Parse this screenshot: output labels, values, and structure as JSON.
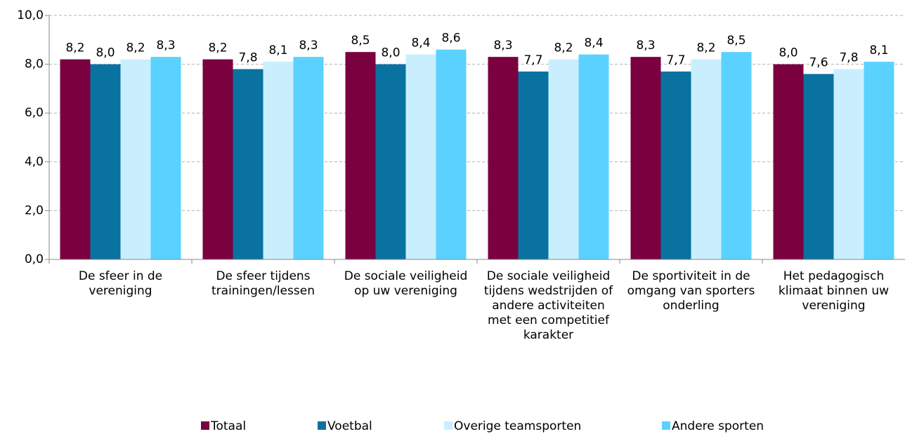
{
  "chart_data": {
    "type": "bar",
    "categories": [
      "De sfeer in de vereniging",
      "De sfeer tijdens trainingen/lessen",
      "De sociale veiligheid  op uw vereniging",
      "De sociale veiligheid  tijdens wedstrijden of andere activiteiten met een competitief karakter",
      "De sportiviteit in de omgang van sporters onderling",
      "Het pedagogisch klimaat  binnen uw vereniging"
    ],
    "series": [
      {
        "name": "Totaal",
        "color": "#7a0040",
        "values": [
          8.2,
          8.2,
          8.5,
          8.3,
          8.3,
          8.0
        ],
        "value_labels": [
          "8,2",
          "8,2",
          "8,5",
          "8,3",
          "8,3",
          "8,0"
        ]
      },
      {
        "name": "Voetbal",
        "color": "#0a72a0",
        "values": [
          8.0,
          7.8,
          8.0,
          7.7,
          7.7,
          7.6
        ],
        "value_labels": [
          "8,0",
          "7,8",
          "8,0",
          "7,7",
          "7,7",
          "7,6"
        ]
      },
      {
        "name": "Overige teamsporten",
        "color": "#c9efff",
        "values": [
          8.2,
          8.1,
          8.4,
          8.2,
          8.2,
          7.8
        ],
        "value_labels": [
          "8,2",
          "8,1",
          "8,4",
          "8,2",
          "8,2",
          "7,8"
        ]
      },
      {
        "name": "Andere sporten",
        "color": "#5bd1ff",
        "values": [
          8.3,
          8.3,
          8.6,
          8.4,
          8.5,
          8.1
        ],
        "value_labels": [
          "8,3",
          "8,3",
          "8,6",
          "8,4",
          "8,5",
          "8,1"
        ]
      }
    ],
    "ylim": [
      0,
      10
    ],
    "yticks": [
      {
        "value": 0,
        "label": "0,0"
      },
      {
        "value": 2,
        "label": "2,0"
      },
      {
        "value": 4,
        "label": "4,0"
      },
      {
        "value": 6,
        "label": "6,0"
      },
      {
        "value": 8,
        "label": "8,0"
      },
      {
        "value": 10,
        "label": "10,0"
      }
    ],
    "grid": true,
    "legend": "bottom"
  }
}
